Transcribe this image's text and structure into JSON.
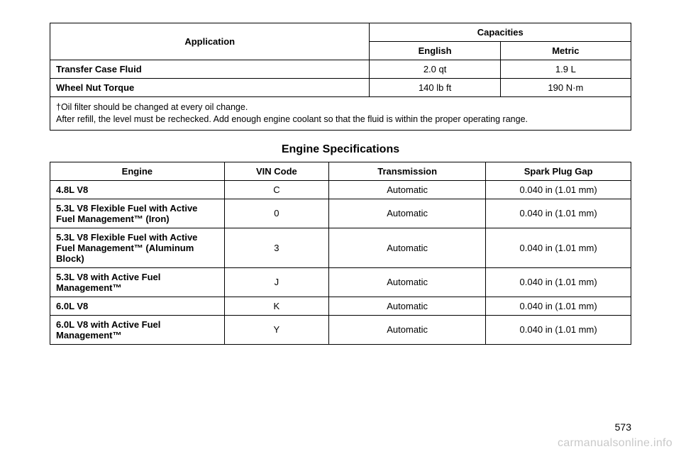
{
  "table1": {
    "headers": {
      "application": "Application",
      "capacities": "Capacities",
      "english": "English",
      "metric": "Metric"
    },
    "rows": [
      {
        "label": "Transfer Case Fluid",
        "english": "2.0 qt",
        "metric": "1.9 L"
      },
      {
        "label": "Wheel Nut Torque",
        "english": "140 lb ft",
        "metric": "190 N·m"
      }
    ],
    "footnote": "†Oil filter should be changed at every oil change.\nAfter refill, the level must be rechecked. Add enough engine coolant so that the fluid is within the proper operating range."
  },
  "section_title": "Engine Specifications",
  "table2": {
    "headers": {
      "engine": "Engine",
      "vin": "VIN Code",
      "transmission": "Transmission",
      "gap": "Spark Plug Gap"
    },
    "rows": [
      {
        "engine": "4.8L V8",
        "vin": "C",
        "trans": "Automatic",
        "gap": "0.040 in (1.01 mm)"
      },
      {
        "engine": "5.3L V8 Flexible Fuel with Active Fuel Management™ (Iron)",
        "vin": "0",
        "trans": "Automatic",
        "gap": "0.040 in (1.01 mm)"
      },
      {
        "engine": "5.3L V8 Flexible Fuel with Active Fuel Management™ (Aluminum Block)",
        "vin": "3",
        "trans": "Automatic",
        "gap": "0.040 in (1.01 mm)"
      },
      {
        "engine": "5.3L V8 with Active Fuel Management™",
        "vin": "J",
        "trans": "Automatic",
        "gap": "0.040 in (1.01 mm)"
      },
      {
        "engine": "6.0L V8",
        "vin": "K",
        "trans": "Automatic",
        "gap": "0.040 in (1.01 mm)"
      },
      {
        "engine": "6.0L V8 with Active Fuel Management™",
        "vin": "Y",
        "trans": "Automatic",
        "gap": "0.040 in (1.01 mm)"
      }
    ]
  },
  "page_number": "573",
  "watermark": "carmanualsonline.info"
}
